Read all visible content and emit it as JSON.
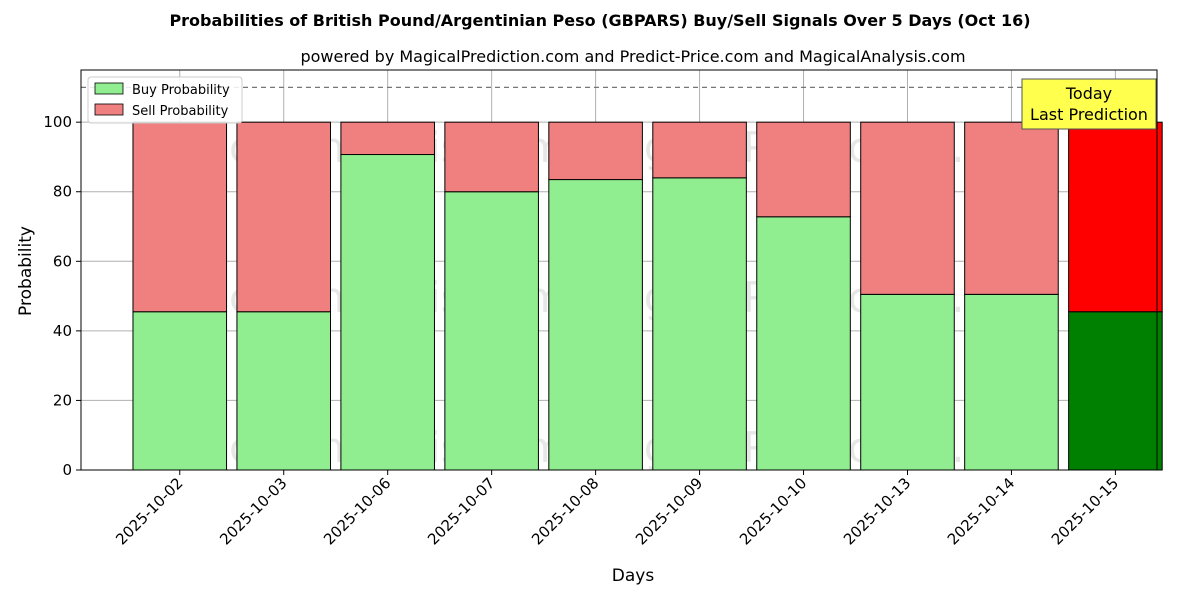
{
  "chart_data": {
    "type": "bar",
    "stacked": true,
    "title": "Probabilities of British Pound/Argentinian Peso (GBPARS) Buy/Sell Signals Over 5 Days (Oct 16)",
    "subtitle": "powered by MagicalPrediction.com and Predict-Price.com and MagicalAnalysis.com",
    "xlabel": "Days",
    "ylabel": "Probability",
    "ylim": [
      0,
      115
    ],
    "yticks": [
      0,
      20,
      40,
      60,
      80,
      100
    ],
    "grid": true,
    "reference_line": 110,
    "legend_position": "top-left",
    "categories": [
      "2025-10-02",
      "2025-10-03",
      "2025-10-06",
      "2025-10-07",
      "2025-10-08",
      "2025-10-09",
      "2025-10-10",
      "2025-10-13",
      "2025-10-14",
      "2025-10-15"
    ],
    "series": [
      {
        "name": "Buy Probability",
        "color": "#90ee90",
        "highlight_color": "#008000",
        "values": [
          45.5,
          45.5,
          90.7,
          80.0,
          83.5,
          84.0,
          72.8,
          50.5,
          50.5,
          45.5
        ]
      },
      {
        "name": "Sell Probability",
        "color": "#f08080",
        "highlight_color": "#ff0000",
        "values": [
          54.5,
          54.5,
          9.3,
          20.0,
          16.5,
          16.0,
          27.2,
          49.5,
          49.5,
          54.5
        ]
      }
    ],
    "highlight_index": 9,
    "annotation": {
      "line1": "Today",
      "line2": "Last Prediction",
      "color": "#ffff4d"
    },
    "watermarks": [
      "MagicalAnalysis.com",
      "MagicalPrediction.com"
    ]
  }
}
